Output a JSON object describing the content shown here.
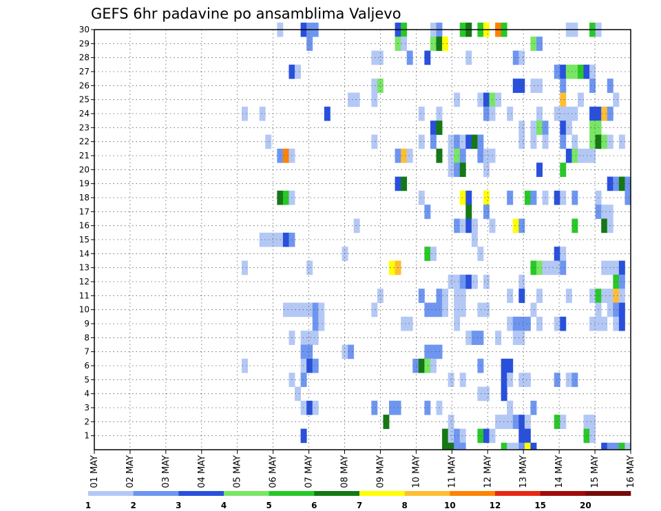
{
  "chart_data": {
    "type": "heatmap",
    "title": "GEFS 6hr padavine po ansamblima Valjevo",
    "y_members": [
      1,
      2,
      3,
      4,
      5,
      6,
      7,
      8,
      9,
      10,
      11,
      12,
      13,
      14,
      15,
      16,
      17,
      18,
      19,
      20,
      21,
      22,
      23,
      24,
      25,
      26,
      27,
      28,
      29,
      30
    ],
    "x_labels": [
      "01 MAY",
      "02 MAY",
      "03 MAY",
      "04 MAY",
      "05 MAY",
      "06 MAY",
      "07 MAY",
      "08 MAY",
      "09 MAY",
      "10 MAY",
      "11 MAY",
      "12 MAY",
      "13 MAY",
      "14 MAY",
      "15 MAY",
      "16 MAY"
    ],
    "steps_per_day": 4,
    "x_range_days": [
      0,
      15
    ],
    "grid": true,
    "colorbar": {
      "labels": [
        "1",
        "2",
        "3",
        "4",
        "5",
        "6",
        "7",
        "8",
        "10",
        "12",
        "15",
        "20"
      ],
      "colors": [
        "#b4c8f5",
        "#6e96f0",
        "#2850dc",
        "#78e664",
        "#28c828",
        "#147814",
        "#ffff00",
        "#ffbe32",
        "#ff8200",
        "#e62814",
        "#a00a0a",
        "#780a0a"
      ]
    },
    "cells": [
      [
        30,
        31,
        1
      ],
      [
        30,
        35,
        3
      ],
      [
        30,
        36,
        2
      ],
      [
        30,
        37,
        2
      ],
      [
        30,
        51,
        3
      ],
      [
        30,
        52,
        5
      ],
      [
        30,
        57,
        1
      ],
      [
        30,
        58,
        2
      ],
      [
        30,
        62,
        5
      ],
      [
        30,
        63,
        6
      ],
      [
        30,
        65,
        5
      ],
      [
        30,
        66,
        7
      ],
      [
        30,
        68,
        9
      ],
      [
        30,
        69,
        5
      ],
      [
        30,
        80,
        1
      ],
      [
        30,
        81,
        1
      ],
      [
        30,
        84,
        5
      ],
      [
        30,
        85,
        1
      ],
      [
        29,
        36,
        2
      ],
      [
        29,
        51,
        4
      ],
      [
        29,
        52,
        1
      ],
      [
        29,
        57,
        4
      ],
      [
        29,
        58,
        6
      ],
      [
        29,
        59,
        7
      ],
      [
        29,
        74,
        4
      ],
      [
        29,
        75,
        2
      ],
      [
        28,
        47,
        1
      ],
      [
        28,
        48,
        1
      ],
      [
        28,
        53,
        2
      ],
      [
        28,
        56,
        3
      ],
      [
        28,
        63,
        1
      ],
      [
        28,
        71,
        2
      ],
      [
        28,
        72,
        1
      ],
      [
        27,
        33,
        3
      ],
      [
        27,
        34,
        1
      ],
      [
        27,
        78,
        2
      ],
      [
        27,
        79,
        3
      ],
      [
        27,
        80,
        4
      ],
      [
        27,
        81,
        4
      ],
      [
        27,
        82,
        5
      ],
      [
        27,
        83,
        3
      ],
      [
        27,
        84,
        1
      ],
      [
        26,
        47,
        1
      ],
      [
        26,
        48,
        4
      ],
      [
        26,
        71,
        3
      ],
      [
        26,
        72,
        3
      ],
      [
        26,
        74,
        1
      ],
      [
        26,
        75,
        1
      ],
      [
        26,
        79,
        2
      ],
      [
        26,
        84,
        2
      ],
      [
        26,
        87,
        2
      ],
      [
        25,
        43,
        1
      ],
      [
        25,
        44,
        1
      ],
      [
        25,
        47,
        1
      ],
      [
        25,
        61,
        1
      ],
      [
        25,
        65,
        1
      ],
      [
        25,
        66,
        3
      ],
      [
        25,
        67,
        4
      ],
      [
        25,
        68,
        1
      ],
      [
        25,
        79,
        8
      ],
      [
        25,
        82,
        1
      ],
      [
        25,
        88,
        1
      ],
      [
        24,
        25,
        1
      ],
      [
        24,
        28,
        1
      ],
      [
        24,
        39,
        3
      ],
      [
        24,
        55,
        1
      ],
      [
        24,
        58,
        1
      ],
      [
        24,
        66,
        2
      ],
      [
        24,
        67,
        1
      ],
      [
        24,
        70,
        1
      ],
      [
        24,
        75,
        1
      ],
      [
        24,
        78,
        1
      ],
      [
        24,
        79,
        1
      ],
      [
        24,
        80,
        1
      ],
      [
        24,
        81,
        1
      ],
      [
        24,
        84,
        3
      ],
      [
        24,
        85,
        3
      ],
      [
        24,
        86,
        8
      ],
      [
        24,
        87,
        2
      ],
      [
        23,
        57,
        3
      ],
      [
        23,
        58,
        6
      ],
      [
        23,
        72,
        1
      ],
      [
        23,
        74,
        1
      ],
      [
        23,
        75,
        4
      ],
      [
        23,
        76,
        2
      ],
      [
        23,
        79,
        3
      ],
      [
        23,
        80,
        1
      ],
      [
        23,
        84,
        4
      ],
      [
        23,
        85,
        4
      ],
      [
        22,
        29,
        1
      ],
      [
        22,
        47,
        1
      ],
      [
        22,
        55,
        1
      ],
      [
        22,
        57,
        2
      ],
      [
        22,
        60,
        1
      ],
      [
        22,
        61,
        2
      ],
      [
        22,
        62,
        1
      ],
      [
        22,
        63,
        3
      ],
      [
        22,
        64,
        6
      ],
      [
        22,
        65,
        2
      ],
      [
        22,
        72,
        1
      ],
      [
        22,
        74,
        1
      ],
      [
        22,
        76,
        1
      ],
      [
        22,
        79,
        2
      ],
      [
        22,
        81,
        1
      ],
      [
        22,
        84,
        4
      ],
      [
        22,
        85,
        6
      ],
      [
        22,
        86,
        4
      ],
      [
        22,
        87,
        1
      ],
      [
        22,
        89,
        1
      ],
      [
        21,
        31,
        2
      ],
      [
        21,
        32,
        9
      ],
      [
        21,
        33,
        1
      ],
      [
        21,
        51,
        2
      ],
      [
        21,
        52,
        8
      ],
      [
        21,
        53,
        1
      ],
      [
        21,
        58,
        6
      ],
      [
        21,
        60,
        1
      ],
      [
        21,
        61,
        4
      ],
      [
        21,
        62,
        2
      ],
      [
        21,
        65,
        2
      ],
      [
        21,
        66,
        1
      ],
      [
        21,
        67,
        1
      ],
      [
        21,
        80,
        3
      ],
      [
        21,
        81,
        4
      ],
      [
        21,
        82,
        1
      ],
      [
        21,
        83,
        1
      ],
      [
        21,
        84,
        1
      ],
      [
        20,
        60,
        1
      ],
      [
        20,
        61,
        2
      ],
      [
        20,
        62,
        6
      ],
      [
        20,
        66,
        1
      ],
      [
        20,
        75,
        3
      ],
      [
        20,
        79,
        5
      ],
      [
        19,
        51,
        3
      ],
      [
        19,
        52,
        6
      ],
      [
        19,
        87,
        3
      ],
      [
        19,
        88,
        2
      ],
      [
        19,
        89,
        6
      ],
      [
        19,
        90,
        2
      ],
      [
        18,
        31,
        6
      ],
      [
        18,
        32,
        5
      ],
      [
        18,
        33,
        1
      ],
      [
        18,
        55,
        1
      ],
      [
        18,
        62,
        7
      ],
      [
        18,
        63,
        3
      ],
      [
        18,
        66,
        7
      ],
      [
        18,
        70,
        2
      ],
      [
        18,
        73,
        5
      ],
      [
        18,
        74,
        2
      ],
      [
        18,
        76,
        1
      ],
      [
        18,
        78,
        3
      ],
      [
        18,
        79,
        1
      ],
      [
        18,
        81,
        2
      ],
      [
        18,
        85,
        1
      ],
      [
        18,
        90,
        2
      ],
      [
        17,
        56,
        2
      ],
      [
        17,
        63,
        6
      ],
      [
        17,
        66,
        2
      ],
      [
        17,
        85,
        2
      ],
      [
        17,
        86,
        1
      ],
      [
        17,
        87,
        1
      ],
      [
        16,
        44,
        1
      ],
      [
        16,
        61,
        2
      ],
      [
        16,
        62,
        1
      ],
      [
        16,
        63,
        3
      ],
      [
        16,
        64,
        1
      ],
      [
        16,
        67,
        1
      ],
      [
        16,
        71,
        7
      ],
      [
        16,
        72,
        2
      ],
      [
        16,
        81,
        5
      ],
      [
        16,
        86,
        6
      ],
      [
        16,
        87,
        1
      ],
      [
        15,
        28,
        1
      ],
      [
        15,
        29,
        1
      ],
      [
        15,
        30,
        1
      ],
      [
        15,
        31,
        1
      ],
      [
        15,
        32,
        3
      ],
      [
        15,
        33,
        2
      ],
      [
        15,
        64,
        1
      ],
      [
        14,
        42,
        1
      ],
      [
        14,
        56,
        5
      ],
      [
        14,
        57,
        1
      ],
      [
        14,
        65,
        1
      ],
      [
        14,
        78,
        3
      ],
      [
        14,
        79,
        1
      ],
      [
        13,
        25,
        1
      ],
      [
        13,
        36,
        1
      ],
      [
        13,
        50,
        7
      ],
      [
        13,
        51,
        8
      ],
      [
        13,
        74,
        5
      ],
      [
        13,
        75,
        4
      ],
      [
        13,
        76,
        1
      ],
      [
        13,
        77,
        1
      ],
      [
        13,
        78,
        1
      ],
      [
        13,
        79,
        2
      ],
      [
        13,
        86,
        1
      ],
      [
        13,
        87,
        1
      ],
      [
        13,
        88,
        1
      ],
      [
        13,
        89,
        3
      ],
      [
        12,
        60,
        1
      ],
      [
        12,
        61,
        1
      ],
      [
        12,
        62,
        2
      ],
      [
        12,
        63,
        3
      ],
      [
        12,
        64,
        1
      ],
      [
        12,
        66,
        1
      ],
      [
        12,
        72,
        1
      ],
      [
        12,
        88,
        5
      ],
      [
        12,
        89,
        2
      ],
      [
        11,
        48,
        1
      ],
      [
        11,
        55,
        2
      ],
      [
        11,
        58,
        2
      ],
      [
        11,
        59,
        1
      ],
      [
        11,
        61,
        1
      ],
      [
        11,
        62,
        1
      ],
      [
        11,
        70,
        1
      ],
      [
        11,
        72,
        3
      ],
      [
        11,
        75,
        1
      ],
      [
        11,
        80,
        1
      ],
      [
        11,
        84,
        1
      ],
      [
        11,
        85,
        5
      ],
      [
        11,
        86,
        1
      ],
      [
        11,
        87,
        1
      ],
      [
        11,
        88,
        8
      ],
      [
        11,
        89,
        1
      ],
      [
        10,
        32,
        1
      ],
      [
        10,
        33,
        1
      ],
      [
        10,
        34,
        1
      ],
      [
        10,
        35,
        1
      ],
      [
        10,
        36,
        1
      ],
      [
        10,
        37,
        2
      ],
      [
        10,
        38,
        1
      ],
      [
        10,
        47,
        1
      ],
      [
        10,
        56,
        2
      ],
      [
        10,
        57,
        2
      ],
      [
        10,
        58,
        2
      ],
      [
        10,
        59,
        1
      ],
      [
        10,
        61,
        1
      ],
      [
        10,
        62,
        1
      ],
      [
        10,
        65,
        1
      ],
      [
        10,
        66,
        1
      ],
      [
        10,
        74,
        1
      ],
      [
        10,
        85,
        1
      ],
      [
        10,
        87,
        1
      ],
      [
        10,
        88,
        2
      ],
      [
        10,
        89,
        3
      ],
      [
        9,
        37,
        2
      ],
      [
        9,
        38,
        1
      ],
      [
        9,
        52,
        1
      ],
      [
        9,
        53,
        1
      ],
      [
        9,
        61,
        1
      ],
      [
        9,
        70,
        1
      ],
      [
        9,
        71,
        2
      ],
      [
        9,
        72,
        2
      ],
      [
        9,
        73,
        2
      ],
      [
        9,
        75,
        1
      ],
      [
        9,
        78,
        1
      ],
      [
        9,
        79,
        3
      ],
      [
        9,
        84,
        1
      ],
      [
        9,
        85,
        1
      ],
      [
        9,
        86,
        1
      ],
      [
        9,
        88,
        1
      ],
      [
        9,
        89,
        3
      ],
      [
        8,
        33,
        1
      ],
      [
        8,
        35,
        1
      ],
      [
        8,
        36,
        1
      ],
      [
        8,
        37,
        1
      ],
      [
        8,
        63,
        1
      ],
      [
        8,
        64,
        2
      ],
      [
        8,
        65,
        2
      ],
      [
        8,
        68,
        1
      ],
      [
        8,
        71,
        1
      ],
      [
        8,
        72,
        1
      ],
      [
        7,
        35,
        2
      ],
      [
        7,
        36,
        2
      ],
      [
        7,
        42,
        1
      ],
      [
        7,
        43,
        2
      ],
      [
        7,
        56,
        2
      ],
      [
        7,
        57,
        2
      ],
      [
        7,
        58,
        2
      ],
      [
        6,
        25,
        1
      ],
      [
        6,
        35,
        1
      ],
      [
        6,
        36,
        3
      ],
      [
        6,
        37,
        2
      ],
      [
        6,
        54,
        2
      ],
      [
        6,
        55,
        6
      ],
      [
        6,
        56,
        4
      ],
      [
        6,
        57,
        1
      ],
      [
        6,
        65,
        2
      ],
      [
        6,
        69,
        3
      ],
      [
        6,
        70,
        3
      ],
      [
        5,
        33,
        1
      ],
      [
        5,
        35,
        2
      ],
      [
        5,
        60,
        1
      ],
      [
        5,
        62,
        1
      ],
      [
        5,
        69,
        3
      ],
      [
        5,
        70,
        1
      ],
      [
        5,
        72,
        1
      ],
      [
        5,
        73,
        1
      ],
      [
        5,
        78,
        2
      ],
      [
        5,
        80,
        1
      ],
      [
        5,
        81,
        2
      ],
      [
        4,
        34,
        1
      ],
      [
        4,
        65,
        1
      ],
      [
        4,
        66,
        1
      ],
      [
        4,
        69,
        3
      ],
      [
        3,
        35,
        1
      ],
      [
        3,
        36,
        3
      ],
      [
        3,
        37,
        1
      ],
      [
        3,
        47,
        2
      ],
      [
        3,
        50,
        2
      ],
      [
        3,
        51,
        2
      ],
      [
        3,
        56,
        2
      ],
      [
        3,
        58,
        1
      ],
      [
        3,
        70,
        1
      ],
      [
        3,
        74,
        2
      ],
      [
        2,
        49,
        6
      ],
      [
        2,
        60,
        1
      ],
      [
        2,
        68,
        1
      ],
      [
        2,
        69,
        1
      ],
      [
        2,
        70,
        1
      ],
      [
        2,
        71,
        2
      ],
      [
        2,
        72,
        3
      ],
      [
        2,
        73,
        1
      ],
      [
        2,
        78,
        5
      ],
      [
        2,
        79,
        1
      ],
      [
        2,
        83,
        1
      ],
      [
        2,
        84,
        1
      ],
      [
        1,
        35,
        3
      ],
      [
        1,
        59,
        6
      ],
      [
        1,
        60,
        1
      ],
      [
        1,
        61,
        2
      ],
      [
        1,
        62,
        1
      ],
      [
        1,
        65,
        5
      ],
      [
        1,
        66,
        3
      ],
      [
        1,
        67,
        1
      ],
      [
        1,
        72,
        3
      ],
      [
        1,
        73,
        3
      ],
      [
        1,
        83,
        5
      ],
      [
        1,
        84,
        1
      ],
      [
        0,
        59,
        6
      ],
      [
        0,
        60,
        6
      ],
      [
        0,
        61,
        2
      ],
      [
        0,
        62,
        2
      ],
      [
        0,
        69,
        5
      ],
      [
        0,
        70,
        1
      ],
      [
        0,
        71,
        1
      ],
      [
        0,
        72,
        2
      ],
      [
        0,
        73,
        7
      ],
      [
        0,
        74,
        3
      ],
      [
        0,
        86,
        3
      ],
      [
        0,
        87,
        2
      ],
      [
        0,
        88,
        2
      ],
      [
        0,
        89,
        5
      ],
      [
        0,
        90,
        1
      ]
    ]
  }
}
